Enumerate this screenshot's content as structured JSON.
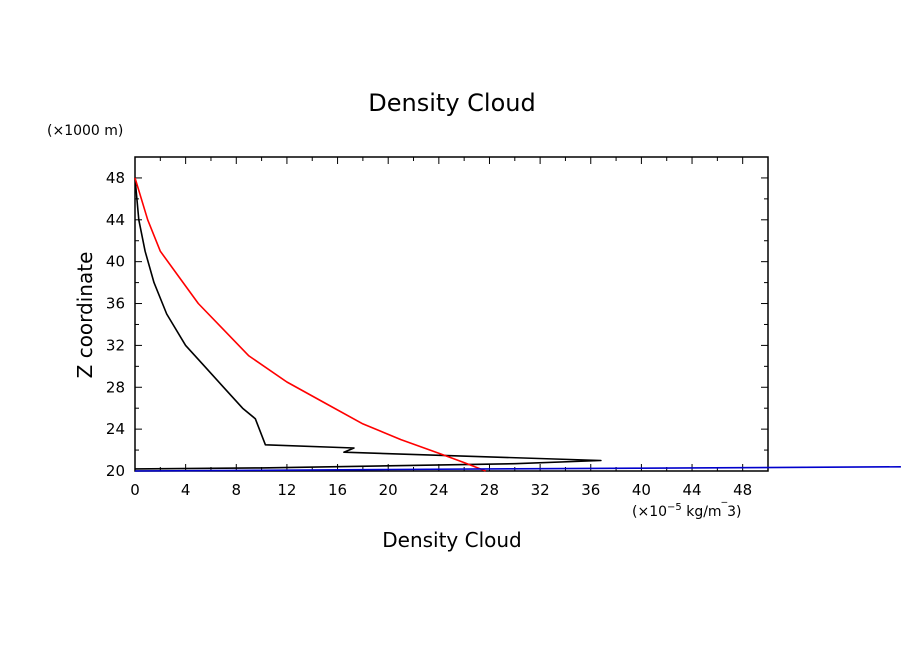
{
  "chart_data": {
    "type": "line",
    "title": "Density Cloud",
    "xlabel": "Density Cloud",
    "ylabel": "Z coordinate",
    "x_unit": "(x10^-5 kg/m^3)",
    "x_unit_prefix": "(×10",
    "x_unit_exp": "−5",
    "x_unit_suffix": " kg/m",
    "x_unit_tail": "3)",
    "y_unit": "(×1000 m)",
    "xlim": [
      0,
      50
    ],
    "ylim": [
      20,
      50
    ],
    "xticks": [
      "0",
      "4",
      "8",
      "12",
      "16",
      "20",
      "24",
      "28",
      "32",
      "36",
      "40",
      "44",
      "48"
    ],
    "yticks": [
      "20",
      "24",
      "28",
      "32",
      "36",
      "40",
      "44",
      "48"
    ],
    "grid": false,
    "series": [
      {
        "color": "#000000",
        "x": [
          0,
          0.3,
          0.8,
          1.5,
          2.5,
          4,
          5.5,
          7,
          8.5,
          9.5,
          10.3,
          17.3,
          16.5,
          36.8,
          30,
          20,
          10,
          0
        ],
        "y": [
          48,
          44,
          41,
          38,
          35,
          32,
          30,
          28,
          26,
          25,
          22.5,
          22.2,
          21.8,
          21,
          20.7,
          20.5,
          20.3,
          20.2
        ]
      },
      {
        "color": "#ff0000",
        "x": [
          0,
          1,
          2,
          3.5,
          5,
          7,
          9,
          12,
          15,
          18,
          21,
          24,
          26,
          27.7
        ],
        "y": [
          48,
          44,
          41,
          38.5,
          36,
          33.5,
          31,
          28.5,
          26.5,
          24.5,
          23,
          21.7,
          20.8,
          20
        ]
      },
      {
        "color": "#0000cc",
        "x": [
          0,
          10,
          20,
          30,
          40,
          60.5
        ],
        "y": [
          20,
          20.07,
          20.14,
          20.21,
          20.27,
          20.4
        ]
      }
    ]
  }
}
